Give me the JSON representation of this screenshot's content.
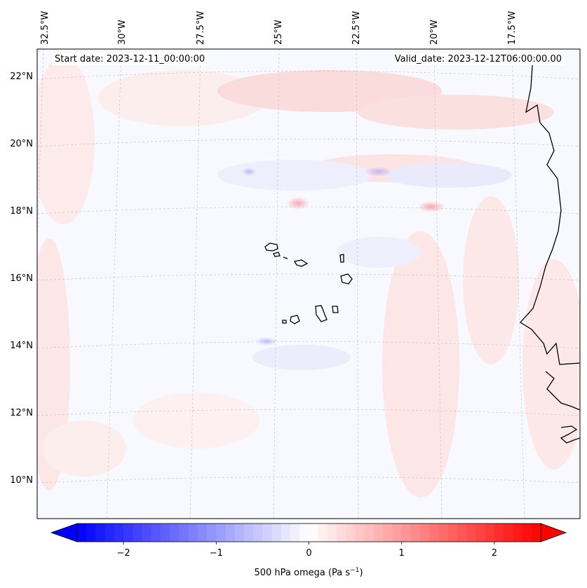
{
  "map": {
    "start_label": "Start date: 2023-12-11_00:00:00",
    "valid_label": "Valid_date: 2023-12-12T06:00:00.00",
    "lon_ticks": [
      "32.5°W",
      "30°W",
      "27.5°W",
      "25°W",
      "22.5°W",
      "20°W",
      "17.5°W"
    ],
    "lat_ticks": [
      "22°N",
      "20°N",
      "18°N",
      "16°N",
      "14°N",
      "12°N",
      "10°N"
    ],
    "field": "500 hPa omega",
    "colormap": "bwr"
  },
  "colorbar": {
    "label_main": "500 hPa omega (Pa s",
    "label_sup": "−1",
    "label_close": ")",
    "ticks": [
      "−2",
      "−1",
      "0",
      "1",
      "2"
    ],
    "tick_values": [
      -2,
      -1,
      0,
      1,
      2
    ],
    "range": [
      -2.5,
      2.5
    ],
    "extend": "both",
    "colors": {
      "low": "#0000ff",
      "mid": "#ffffff",
      "high": "#ff0000"
    }
  }
}
